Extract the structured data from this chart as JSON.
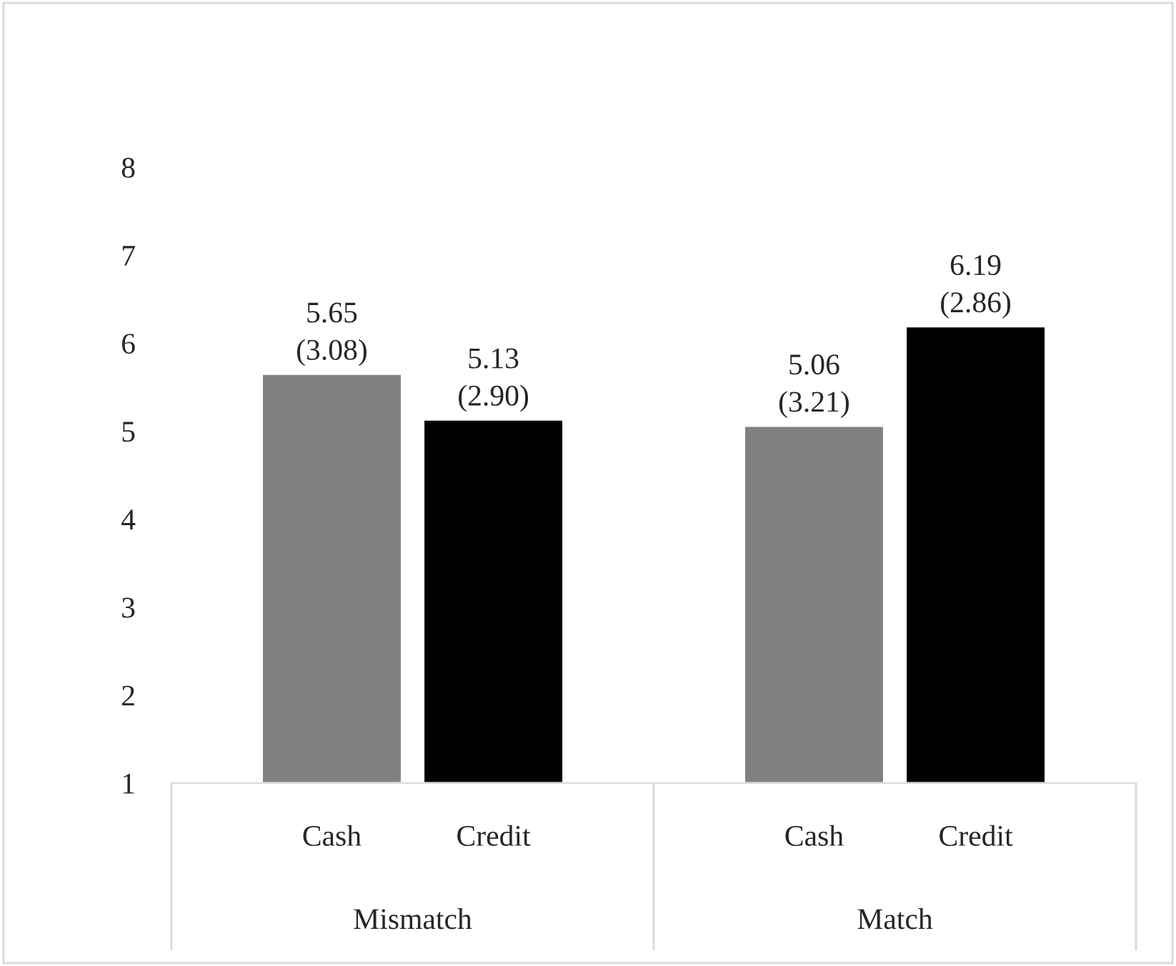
{
  "chart_data": {
    "type": "bar",
    "categories": [
      "Mismatch",
      "Match"
    ],
    "series": [
      {
        "name": "Cash",
        "color": "#808080",
        "values": [
          5.65,
          5.06
        ],
        "value_labels": [
          "5.65\n(3.08)",
          "5.06\n(3.21)"
        ]
      },
      {
        "name": "Credit",
        "color": "#000000",
        "values": [
          5.13,
          6.19
        ],
        "value_labels": [
          "5.13\n(2.90)",
          "6.19\n(2.86)"
        ]
      }
    ],
    "ylim": [
      1,
      8
    ],
    "yticks": [
      1,
      2,
      3,
      4,
      5,
      6,
      7,
      8
    ],
    "grid": false,
    "legend": false
  }
}
